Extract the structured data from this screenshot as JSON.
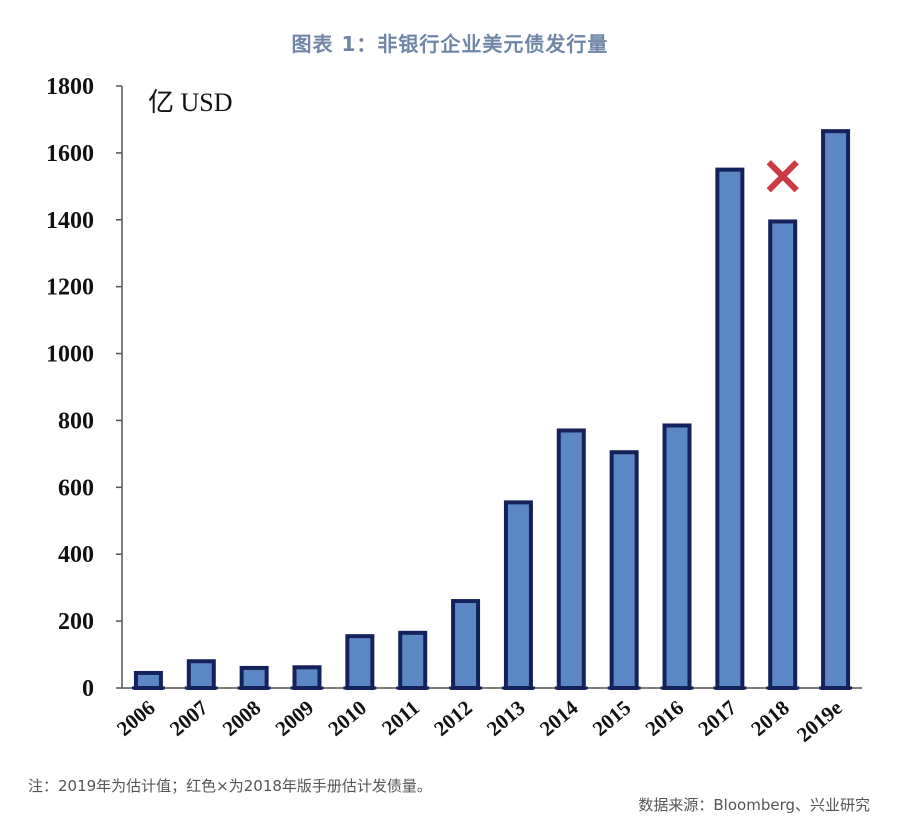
{
  "title": "图表 1：非银行企业美元债发行量",
  "note": "注：2019年为估计值；红色×为2018年版手册估计发债量。",
  "source": "数据来源：Bloomberg、兴业研究",
  "colors": {
    "bar_fill": "#5b87c4",
    "bar_border": "#14215a",
    "marker": "#cc3a44",
    "title": "#6f86a6"
  },
  "chart_data": {
    "type": "bar",
    "unit_label": "亿 USD",
    "categories": [
      "2006",
      "2007",
      "2008",
      "2009",
      "2010",
      "2011",
      "2012",
      "2013",
      "2014",
      "2015",
      "2016",
      "2017",
      "2018",
      "2019e"
    ],
    "values": [
      45,
      80,
      60,
      62,
      155,
      165,
      260,
      555,
      770,
      705,
      785,
      1550,
      1395,
      1665
    ],
    "ylim": [
      0,
      1800
    ],
    "yticks": [
      0,
      200,
      400,
      600,
      800,
      1000,
      1200,
      1400,
      1600,
      1800
    ],
    "grid": false,
    "annotation": {
      "category": "2018",
      "symbol": "×",
      "value": 1530,
      "color": "#cc3a44"
    }
  }
}
